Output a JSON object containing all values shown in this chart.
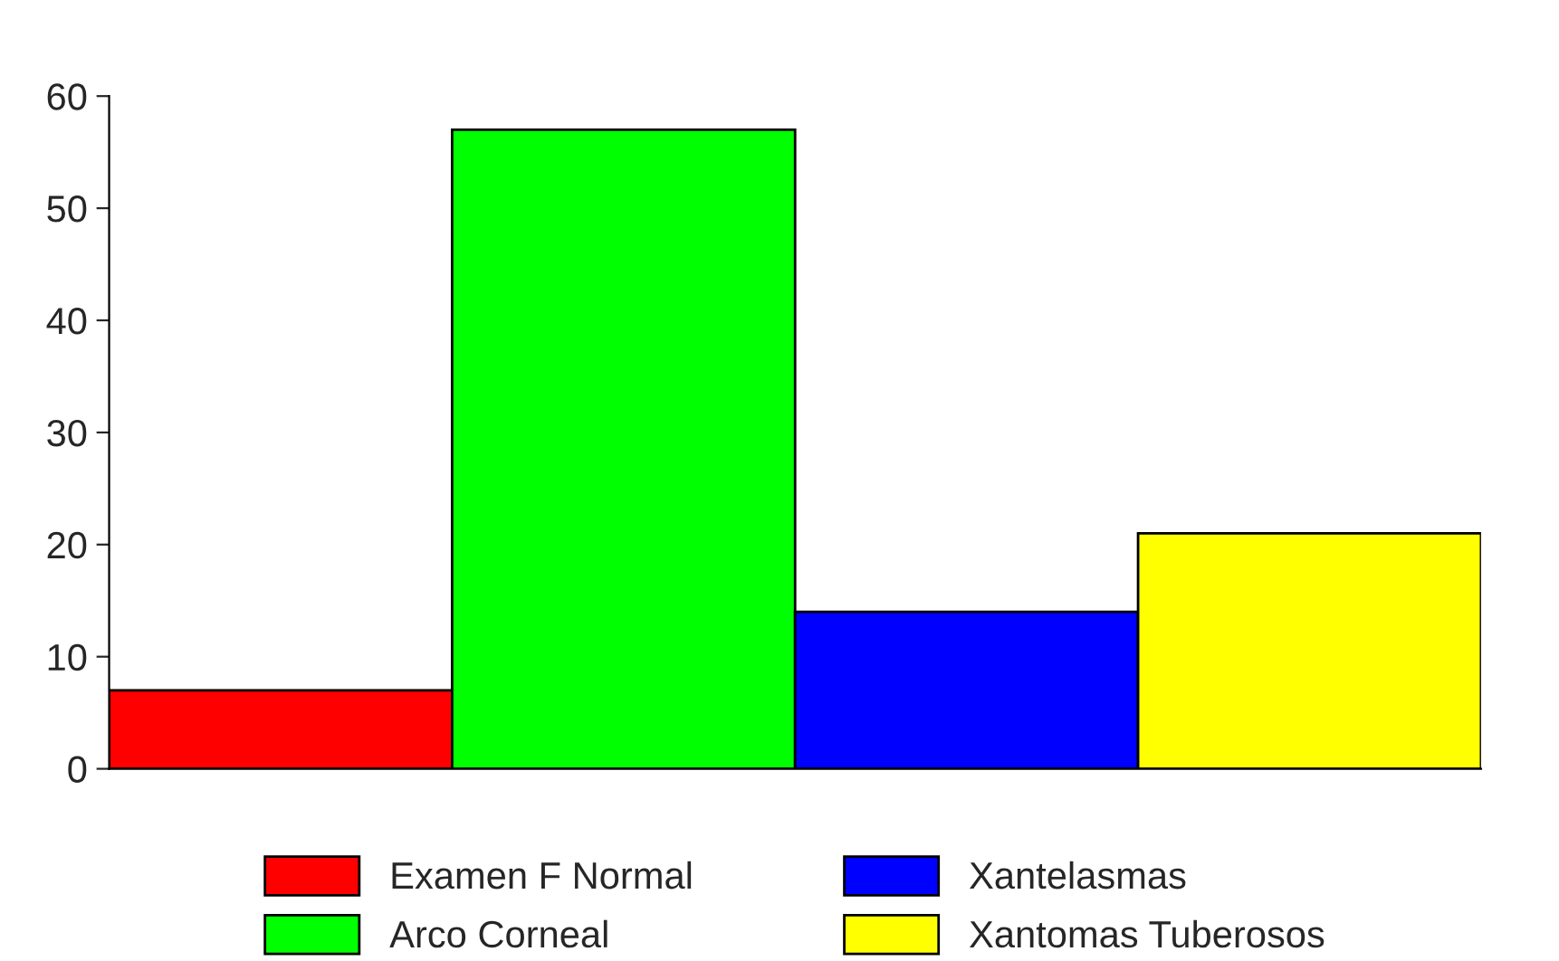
{
  "chart_data": {
    "type": "bar",
    "categories": [
      null,
      null,
      null,
      null
    ],
    "series": [
      {
        "name": "Examen F Normal",
        "color": "#ff0000",
        "values": [
          7,
          null,
          null,
          null
        ]
      },
      {
        "name": "Arco Corneal",
        "color": "#00ff00",
        "values": [
          null,
          57,
          null,
          null
        ]
      },
      {
        "name": "Xantelasmas",
        "color": "#0000ff",
        "values": [
          null,
          null,
          14,
          null
        ]
      },
      {
        "name": "Xantomas Tuberosos",
        "color": "#ffff00",
        "values": [
          null,
          null,
          null,
          21
        ]
      }
    ],
    "ylim": [
      0,
      60
    ],
    "yticks": [
      0,
      10,
      20,
      30,
      40,
      50,
      60
    ],
    "grid": false,
    "legend": "bottom"
  }
}
